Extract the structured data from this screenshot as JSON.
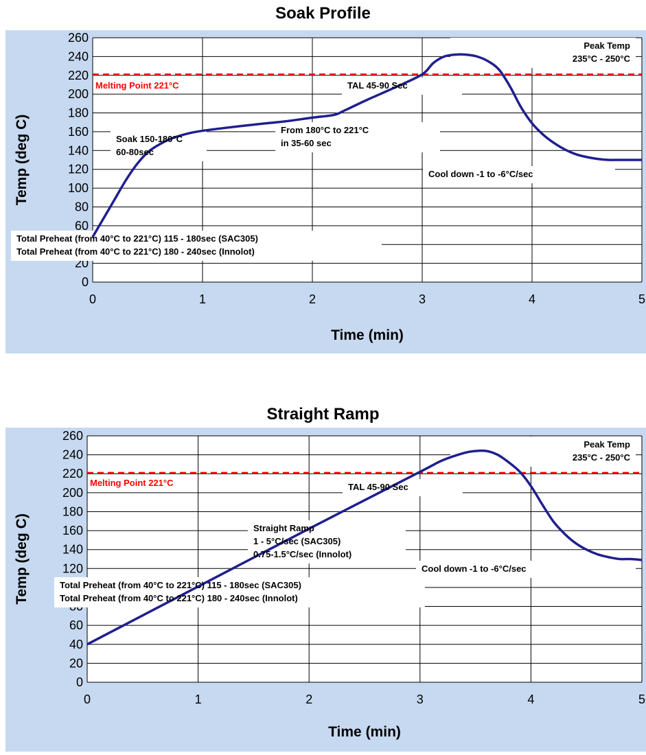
{
  "chart_data": [
    {
      "type": "line",
      "title": "Soak Profile",
      "xlabel": "Time (min)",
      "ylabel": "Temp (deg C)",
      "xlim": [
        0,
        5
      ],
      "ylim": [
        0,
        260
      ],
      "x_ticks": [
        "0",
        "1",
        "2",
        "3",
        "4",
        "5"
      ],
      "y_ticks": [
        "0",
        "20",
        "40",
        "60",
        "80",
        "100",
        "120",
        "140",
        "160",
        "180",
        "200",
        "220",
        "240",
        "260"
      ],
      "grid": true,
      "series": [
        {
          "color": "#1f1f8f",
          "x": [
            0,
            0.1,
            0.2,
            0.3,
            0.4,
            0.5,
            0.6,
            0.7,
            0.8,
            0.9,
            1.0,
            1.2,
            1.5,
            1.75,
            2.0,
            2.2,
            2.3,
            2.5,
            2.75,
            3.0,
            3.1,
            3.2,
            3.3,
            3.4,
            3.5,
            3.6,
            3.7,
            3.8,
            3.9,
            4.0,
            4.1,
            4.2,
            4.3,
            4.4,
            4.5,
            4.6,
            4.7,
            4.8,
            5.0
          ],
          "y": [
            48,
            68,
            88,
            108,
            125,
            138,
            146,
            152,
            156,
            159,
            161,
            164,
            168,
            171,
            175,
            178,
            183,
            194,
            207,
            221,
            233,
            240,
            242,
            242,
            240,
            235,
            226,
            208,
            186,
            169,
            157,
            148,
            141,
            136,
            133,
            131,
            130,
            130,
            130
          ]
        }
      ],
      "reference_line": {
        "y": 221,
        "color": "#ff0000",
        "label": "Melting Point 221°C"
      },
      "annotations": [
        {
          "lines": [
            "Soak 150-180°C",
            "60-80sec"
          ]
        },
        {
          "lines": [
            "From 180°C to 221°C",
            "in  35-60 sec"
          ]
        },
        {
          "lines": [
            "Peak Temp",
            "235°C - 250°C"
          ]
        },
        {
          "lines": [
            "TAL 45-90 Sec"
          ]
        },
        {
          "lines": [
            "Cool down -1 to -6°C/sec"
          ]
        },
        {
          "lines": [
            "Total Preheat (from 40°C to 221°C) 115 - 180sec (SAC305)",
            "Total Preheat (from 40°C to 221°C) 180 - 240sec (Innolot)"
          ]
        }
      ]
    },
    {
      "type": "line",
      "title": "Straight Ramp",
      "xlabel": "Time (min)",
      "ylabel": "Temp (deg C)",
      "xlim": [
        0,
        5
      ],
      "ylim": [
        0,
        260
      ],
      "x_ticks": [
        "0",
        "1",
        "2",
        "3",
        "4",
        "5"
      ],
      "y_ticks": [
        "0",
        "20",
        "40",
        "60",
        "80",
        "100",
        "120",
        "140",
        "160",
        "180",
        "200",
        "220",
        "240",
        "260"
      ],
      "grid": true,
      "series": [
        {
          "color": "#1f1f8f",
          "x": [
            0,
            1,
            2,
            3,
            3.2,
            3.4,
            3.5,
            3.6,
            3.7,
            3.8,
            3.9,
            4.0,
            4.1,
            4.2,
            4.3,
            4.4,
            4.5,
            4.6,
            4.7,
            4.8,
            4.9,
            5.0
          ],
          "y": [
            40,
            101,
            162,
            222,
            234,
            242,
            244,
            244,
            240,
            232,
            222,
            207,
            188,
            170,
            157,
            147,
            140,
            135,
            132,
            130,
            130,
            129
          ]
        }
      ],
      "reference_line": {
        "y": 221,
        "color": "#ff0000",
        "label": "Melting Point 221°C"
      },
      "annotations": [
        {
          "lines": [
            "Straight Ramp",
            "1 - 5°C/sec (SAC305)",
            "0.75-1.5°C/sec (Innolot)"
          ]
        },
        {
          "lines": [
            "Peak Temp",
            "235°C - 250°C"
          ]
        },
        {
          "lines": [
            "TAL 45-90 Sec"
          ]
        },
        {
          "lines": [
            "Cool down -1 to -6°C/sec"
          ]
        },
        {
          "lines": [
            "Total Preheat (from 40°C to 221°C) 115 - 180sec (SAC305)",
            "Total Preheat (from 40°C to 221°C) 180 - 240sec (Innolot)"
          ]
        }
      ]
    }
  ]
}
